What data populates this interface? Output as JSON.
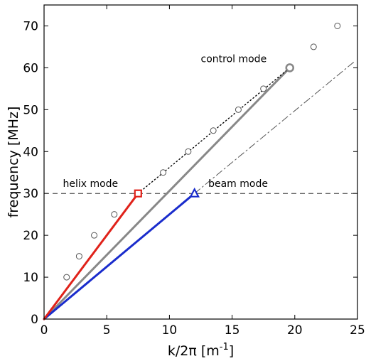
{
  "chart_data": {
    "type": "line",
    "xlabel_base": "k/2π [m",
    "xlabel_sup": "-1",
    "xlabel_tail": "]",
    "ylabel": "frequency [MHz]",
    "xlim": [
      0,
      25
    ],
    "ylim": [
      0,
      75
    ],
    "xticks": [
      0,
      5,
      10,
      15,
      20,
      25
    ],
    "yticks": [
      0,
      10,
      20,
      30,
      40,
      50,
      60,
      70
    ],
    "grid": false,
    "series": [
      {
        "key": "circles",
        "style": "scatter-open-circle",
        "color": "#555555",
        "x": [
          1.8,
          2.8,
          4.0,
          5.6,
          9.5,
          11.5,
          13.5,
          15.5,
          17.5,
          21.5,
          23.4
        ],
        "y": [
          10,
          15,
          20,
          25,
          35,
          40,
          45,
          50,
          55,
          65,
          70
        ]
      },
      {
        "key": "helix",
        "style": "solid",
        "color": "#e0221a",
        "x": [
          0,
          7.5
        ],
        "y": [
          0,
          30
        ]
      },
      {
        "key": "beam",
        "style": "solid",
        "color": "#1a2ccc",
        "x": [
          0,
          12.0
        ],
        "y": [
          0,
          30
        ]
      },
      {
        "key": "control",
        "style": "solid",
        "color": "#888888",
        "x": [
          0,
          19.6
        ],
        "y": [
          0,
          60
        ]
      },
      {
        "key": "helix-extension",
        "style": "dotted",
        "color": "#000000",
        "x": [
          7.5,
          19.6
        ],
        "y": [
          30,
          60
        ]
      },
      {
        "key": "beam-extension",
        "style": "dashdot",
        "color": "#555555",
        "x": [
          12.0,
          24.8
        ],
        "y": [
          30,
          61.6
        ]
      }
    ],
    "hline": {
      "y": 30,
      "style": "dashed",
      "color": "#333333"
    },
    "markers": [
      {
        "key": "helix-marker",
        "shape": "square",
        "x": 7.5,
        "y": 30,
        "color": "#e0221a"
      },
      {
        "key": "beam-marker",
        "shape": "triangle",
        "x": 12.0,
        "y": 30,
        "color": "#1a2ccc"
      },
      {
        "key": "control-marker",
        "shape": "circle",
        "x": 19.6,
        "y": 60,
        "color": "#888888"
      }
    ],
    "annotations": {
      "helix": {
        "text": "helix mode",
        "x": 1.5,
        "y": 31.6
      },
      "beam": {
        "text": "beam mode",
        "x": 13.1,
        "y": 31.6
      },
      "control": {
        "text": "control mode",
        "x": 12.5,
        "y": 61.3
      }
    }
  }
}
